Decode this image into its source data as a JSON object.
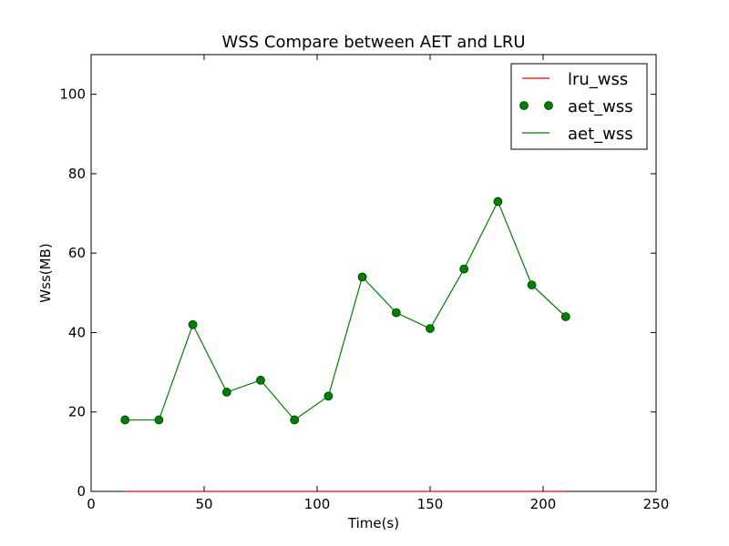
{
  "chart_data": {
    "type": "line",
    "title": "WSS Compare between AET and LRU",
    "xlabel": "Time(s)",
    "ylabel": "Wss(MB)",
    "xlim": [
      0,
      250
    ],
    "ylim": [
      0,
      110
    ],
    "x_ticks": [
      0,
      50,
      100,
      150,
      200,
      250
    ],
    "y_ticks": [
      0,
      20,
      40,
      60,
      80,
      100
    ],
    "x_tick_labels": [
      "0",
      "50",
      "100",
      "150",
      "200",
      "250"
    ],
    "y_tick_labels": [
      "0",
      "20",
      "40",
      "60",
      "80",
      "100"
    ],
    "grid": false,
    "legend_position": "top-right",
    "legend": [
      {
        "label": "lru_wss",
        "style": "line",
        "color": "#ff0000"
      },
      {
        "label": "aet_wss",
        "style": "markers",
        "color": "#007f00"
      },
      {
        "label": "aet_wss",
        "style": "line",
        "color": "#007f00"
      }
    ],
    "series": [
      {
        "name": "lru_wss",
        "color": "#ff0000",
        "style": "line",
        "x": [
          15,
          30,
          45,
          60,
          75,
          90,
          105,
          120,
          135,
          150,
          165,
          180,
          195,
          210
        ],
        "values": [
          0,
          0,
          0,
          0,
          0,
          0,
          0,
          0,
          0,
          0,
          0,
          0,
          0,
          0
        ]
      },
      {
        "name": "aet_wss",
        "color": "#007f00",
        "style": "line+markers",
        "x": [
          15,
          30,
          45,
          60,
          75,
          90,
          105,
          120,
          135,
          150,
          165,
          180,
          195,
          210
        ],
        "values": [
          18,
          18,
          42,
          25,
          28,
          18,
          24,
          54,
          45,
          41,
          56,
          73,
          52,
          44
        ]
      }
    ]
  }
}
